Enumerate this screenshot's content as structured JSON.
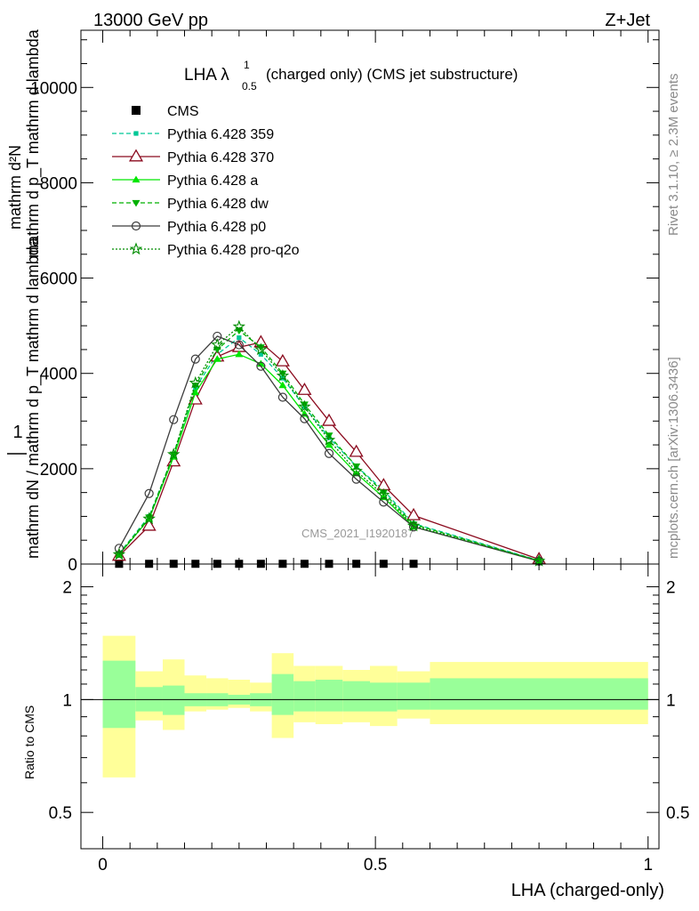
{
  "header": {
    "energy": "13000 GeV pp",
    "process": "Z+Jet"
  },
  "title": {
    "main": "LHA λ",
    "sup": "1",
    "sub": "0.5",
    "rest": "(charged only) (CMS jet substructure)"
  },
  "side_labels": {
    "rivet": "Rivet 3.1.10, ≥ 2.3M events",
    "mcplots": "mcplots.cern.ch [arXiv:1306.3436]"
  },
  "watermark": "CMS_2021_I1920187",
  "main_ylabel": {
    "top": "1",
    "bottom": "mathrm dN / mathrm d p_T mathrm d lambda",
    "overlay_top": "mathrm d²N",
    "overlay_bottom": "mathrm d p_T mathrm d lambda"
  },
  "ratio_ylabel": "Ratio to CMS",
  "xlabel": "LHA (charged-only)",
  "colors": {
    "cms": "#000000",
    "p359": "#00c896",
    "p370": "#8b0a1e",
    "pa": "#00e600",
    "pdw": "#00b000",
    "pp0": "#3c3c3c",
    "pq2o": "#008c00",
    "band_inner": "#99ff99",
    "band_outer": "#ffff99"
  },
  "chart_data": [
    {
      "type": "line",
      "panel": "main",
      "xlim": [
        -0.04,
        1.02
      ],
      "ylim": [
        0,
        11200
      ],
      "yticks": [
        0,
        2000,
        4000,
        6000,
        8000,
        10000
      ],
      "ytick_labels": [
        "0",
        "2000",
        "4000",
        "6000",
        "8000",
        "10000"
      ],
      "legend_position": "top-left",
      "series": [
        {
          "name": "CMS",
          "marker": "square",
          "x": [
            0.03,
            0.085,
            0.13,
            0.17,
            0.21,
            0.25,
            0.29,
            0.33,
            0.37,
            0.415,
            0.465,
            0.515,
            0.57
          ],
          "y": [
            5,
            5,
            5,
            5,
            5,
            5,
            5,
            5,
            5,
            5,
            5,
            5,
            5
          ]
        },
        {
          "name": "Pythia 6.428 359",
          "marker": "small-square",
          "dash": "dashed",
          "x": [
            0.03,
            0.085,
            0.13,
            0.17,
            0.21,
            0.25,
            0.29,
            0.33,
            0.37,
            0.415,
            0.465,
            0.515,
            0.57,
            0.8
          ],
          "y": [
            220,
            1000,
            2300,
            3700,
            4400,
            4750,
            4400,
            3900,
            3300,
            2650,
            2050,
            1550,
            850,
            75
          ]
        },
        {
          "name": "Pythia 6.428 370",
          "marker": "open-triangle",
          "dash": "solid",
          "x": [
            0.03,
            0.085,
            0.13,
            0.17,
            0.21,
            0.25,
            0.29,
            0.33,
            0.37,
            0.415,
            0.465,
            0.515,
            0.57,
            0.8
          ],
          "y": [
            170,
            800,
            2150,
            3450,
            4350,
            4550,
            4650,
            4250,
            3650,
            3000,
            2350,
            1650,
            1020,
            100
          ]
        },
        {
          "name": "Pythia 6.428 a",
          "marker": "triangle",
          "dash": "solid",
          "x": [
            0.03,
            0.085,
            0.13,
            0.17,
            0.21,
            0.25,
            0.29,
            0.33,
            0.37,
            0.415,
            0.465,
            0.515,
            0.57,
            0.8
          ],
          "y": [
            200,
            950,
            2250,
            3600,
            4300,
            4400,
            4200,
            3750,
            3150,
            2500,
            1900,
            1400,
            780,
            65
          ]
        },
        {
          "name": "Pythia 6.428 dw",
          "marker": "down-triangle",
          "dash": "dashed",
          "x": [
            0.03,
            0.085,
            0.13,
            0.17,
            0.21,
            0.25,
            0.29,
            0.33,
            0.37,
            0.415,
            0.465,
            0.515,
            0.57,
            0.8
          ],
          "y": [
            210,
            980,
            2300,
            3750,
            4500,
            4900,
            4550,
            4000,
            3350,
            2700,
            2050,
            1500,
            830,
            70
          ]
        },
        {
          "name": "Pythia 6.428 p0",
          "marker": "open-circle",
          "dash": "solid",
          "x": [
            0.03,
            0.085,
            0.13,
            0.17,
            0.21,
            0.25,
            0.29,
            0.33,
            0.37,
            0.415,
            0.465,
            0.515,
            0.57,
            0.8
          ],
          "y": [
            330,
            1480,
            3030,
            4300,
            4780,
            4600,
            4150,
            3500,
            3050,
            2320,
            1780,
            1300,
            780,
            60
          ]
        },
        {
          "name": "Pythia 6.428 pro-q2o",
          "marker": "open-star",
          "dash": "dotted",
          "x": [
            0.03,
            0.085,
            0.13,
            0.17,
            0.21,
            0.25,
            0.29,
            0.33,
            0.37,
            0.415,
            0.465,
            0.515,
            0.57,
            0.8
          ],
          "y": [
            200,
            950,
            2300,
            3800,
            4600,
            4980,
            4500,
            3950,
            3300,
            2600,
            1950,
            1450,
            800,
            65
          ]
        }
      ]
    },
    {
      "type": "area",
      "panel": "ratio",
      "xlim": [
        -0.04,
        1.02
      ],
      "ylim": [
        0.4,
        2.3
      ],
      "yticks": [
        0.5,
        1,
        2
      ],
      "ytick_labels": [
        "0.5",
        "1",
        "2"
      ],
      "xticks": [
        0,
        0.5,
        1
      ],
      "xtick_labels": [
        "0",
        "0.5",
        "1"
      ],
      "reference_line": 1,
      "bins": [
        {
          "lo": 0.0,
          "hi": 0.06,
          "inner": [
            0.84,
            1.27
          ],
          "outer": [
            0.62,
            1.48
          ]
        },
        {
          "lo": 0.06,
          "hi": 0.11,
          "inner": [
            0.93,
            1.08
          ],
          "outer": [
            0.88,
            1.19
          ]
        },
        {
          "lo": 0.11,
          "hi": 0.15,
          "inner": [
            0.91,
            1.09
          ],
          "outer": [
            0.83,
            1.28
          ]
        },
        {
          "lo": 0.15,
          "hi": 0.19,
          "inner": [
            0.96,
            1.04
          ],
          "outer": [
            0.93,
            1.16
          ]
        },
        {
          "lo": 0.19,
          "hi": 0.23,
          "inner": [
            0.96,
            1.04
          ],
          "outer": [
            0.94,
            1.14
          ]
        },
        {
          "lo": 0.23,
          "hi": 0.27,
          "inner": [
            0.97,
            1.03
          ],
          "outer": [
            0.95,
            1.13
          ]
        },
        {
          "lo": 0.27,
          "hi": 0.31,
          "inner": [
            0.96,
            1.04
          ],
          "outer": [
            0.93,
            1.11
          ]
        },
        {
          "lo": 0.31,
          "hi": 0.35,
          "inner": [
            0.91,
            1.17
          ],
          "outer": [
            0.79,
            1.33
          ]
        },
        {
          "lo": 0.35,
          "hi": 0.39,
          "inner": [
            0.93,
            1.12
          ],
          "outer": [
            0.87,
            1.23
          ]
        },
        {
          "lo": 0.39,
          "hi": 0.44,
          "inner": [
            0.93,
            1.13
          ],
          "outer": [
            0.86,
            1.23
          ]
        },
        {
          "lo": 0.44,
          "hi": 0.49,
          "inner": [
            0.93,
            1.12
          ],
          "outer": [
            0.87,
            1.2
          ]
        },
        {
          "lo": 0.49,
          "hi": 0.54,
          "inner": [
            0.93,
            1.11
          ],
          "outer": [
            0.85,
            1.23
          ]
        },
        {
          "lo": 0.54,
          "hi": 0.6,
          "inner": [
            0.94,
            1.11
          ],
          "outer": [
            0.89,
            1.19
          ]
        },
        {
          "lo": 0.6,
          "hi": 1.0,
          "inner": [
            0.94,
            1.14
          ],
          "outer": [
            0.86,
            1.26
          ]
        }
      ]
    }
  ]
}
